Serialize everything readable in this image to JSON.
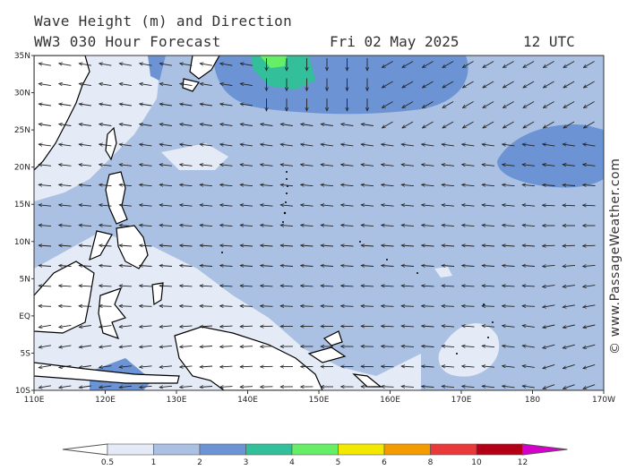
{
  "header": {
    "title": "Wave Height (m) and Direction",
    "model": "WW3 030 Hour Forecast",
    "date": "Fri 02 May 2025",
    "utc": "12 UTC"
  },
  "credit": "© www.PassageWeather.com",
  "map": {
    "lon_range": [
      110,
      190
    ],
    "lat_range": [
      -10,
      35
    ],
    "lon_ticks": [
      "110E",
      "120E",
      "130E",
      "140E",
      "150E",
      "160E",
      "170E",
      "180",
      "170W"
    ],
    "lat_ticks": [
      "35N",
      "30N",
      "25N",
      "20N",
      "15N",
      "10N",
      "5N",
      "EQ",
      "5S",
      "10S"
    ],
    "dominant_wave_direction": "from east-northeast (arrows pointing west-southwest)",
    "colors": {
      "land": "#ffffff",
      "coast": "#000000"
    }
  },
  "legend": {
    "labels": [
      "0.5",
      "1",
      "2",
      "3",
      "4",
      "5",
      "6",
      "8",
      "10",
      "12"
    ],
    "colors": [
      "#e4ebf7",
      "#aac1e3",
      "#6c94d4",
      "#32bf9a",
      "#66ee66",
      "#f3e800",
      "#f49b00",
      "#e83a3a",
      "#b30016",
      "#d600cc"
    ]
  }
}
